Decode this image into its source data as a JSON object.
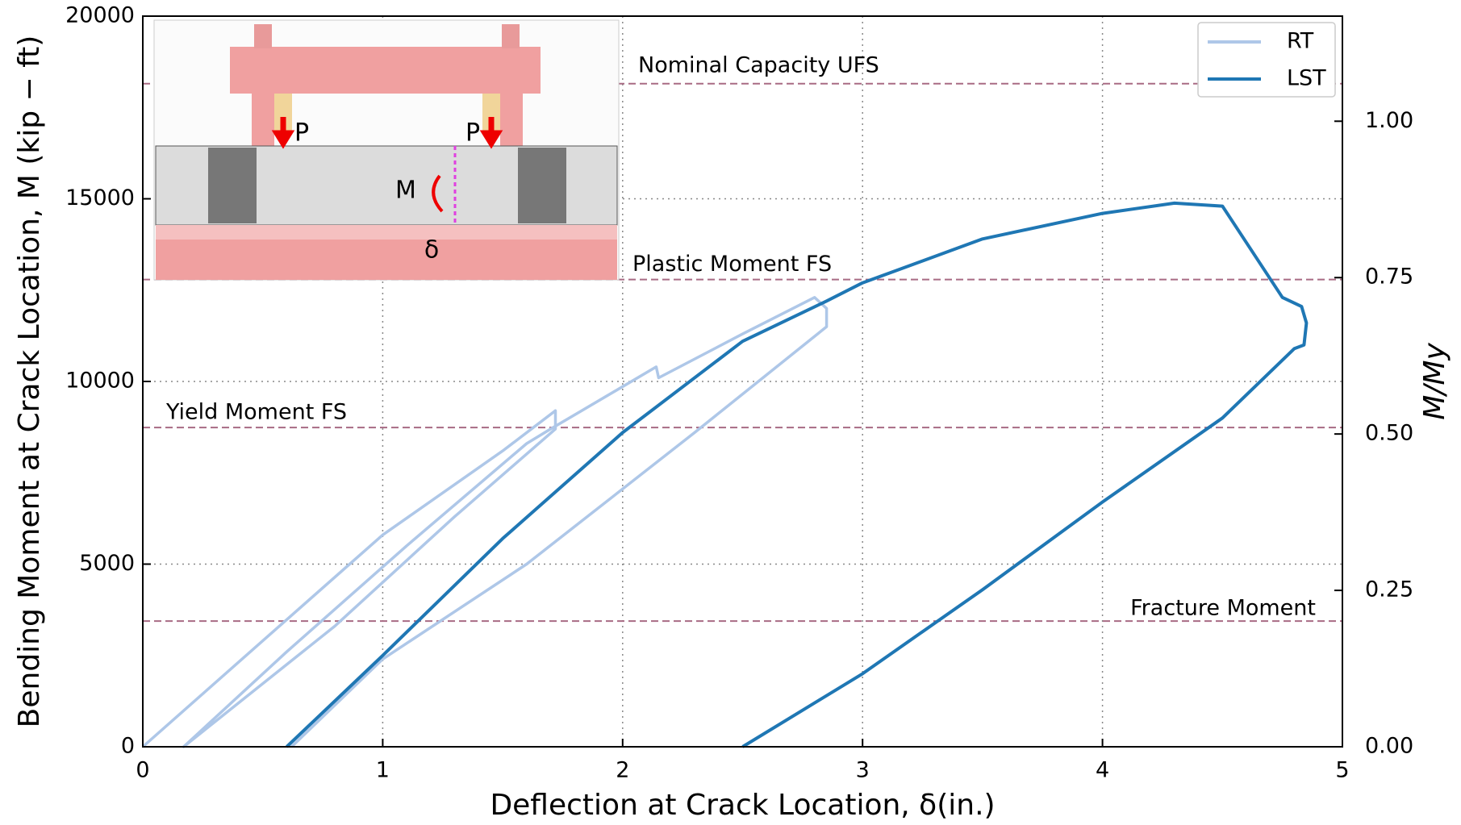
{
  "chart_data": {
    "type": "line",
    "xlabel": "Deflection at Crack Location, δ(in.)",
    "ylabel": "Bending Moment at Crack Location, M (kip − ft)",
    "y2label": "M/My",
    "xlim": [
      0,
      5
    ],
    "xticks": [
      0,
      1,
      2,
      3,
      4,
      5
    ],
    "ylim": [
      0,
      20000
    ],
    "yticks": [
      0,
      5000,
      10000,
      15000,
      20000
    ],
    "y2lim": [
      0,
      1.168
    ],
    "y2ticks": [
      {
        "value": 0,
        "label": "0.00"
      },
      {
        "value": 0.25,
        "label": "0.25"
      },
      {
        "value": 0.5,
        "label": "0.50"
      },
      {
        "value": 0.75,
        "label": "0.75"
      },
      {
        "value": 1,
        "label": "1.00"
      }
    ],
    "grid": true,
    "legend": "upper right",
    "reference_color": "#a86b84",
    "reference_lines": [
      {
        "label": "Nominal Capacity UFS",
        "value": 18150
      },
      {
        "label": "Plastic Moment FS",
        "value": 12790
      },
      {
        "label": "Yield Moment FS",
        "value": 8740
      },
      {
        "label": "Fracture Moment",
        "value": 3440
      }
    ],
    "series": [
      {
        "name": "RT",
        "color": "#aec7e8",
        "x": [
          0,
          0.5,
          1,
          1.5,
          1.72,
          1.72,
          1.3,
          0.8,
          0.17,
          0.6,
          1.1,
          1.6,
          1.7,
          2.14,
          2.15,
          2.5,
          2.8,
          2.85,
          2.85,
          2.3,
          1.6,
          1,
          0.62
        ],
        "values": [
          0,
          2900,
          5800,
          8100,
          9200,
          8700,
          6300,
          3300,
          0,
          2600,
          5500,
          8300,
          8700,
          10400,
          10100,
          11300,
          12300,
          12000,
          11500,
          8600,
          5000,
          2400,
          0
        ]
      },
      {
        "name": "LST",
        "color": "#1f77b4",
        "x": [
          0.6,
          1,
          1.5,
          2,
          2.5,
          2.85,
          3,
          3.5,
          4,
          4.3,
          4.5,
          4.75,
          4.83,
          4.85,
          4.84,
          4.8,
          4.5,
          4,
          3.5,
          3,
          2.5
        ],
        "values": [
          0,
          2500,
          5700,
          8600,
          11100,
          12200,
          12700,
          13900,
          14600,
          14880,
          14800,
          12300,
          12050,
          11600,
          11000,
          10900,
          9000,
          6700,
          4300,
          2000,
          0
        ]
      }
    ]
  },
  "inset": {
    "labels": [
      "P",
      "P",
      "M",
      "δ"
    ]
  }
}
